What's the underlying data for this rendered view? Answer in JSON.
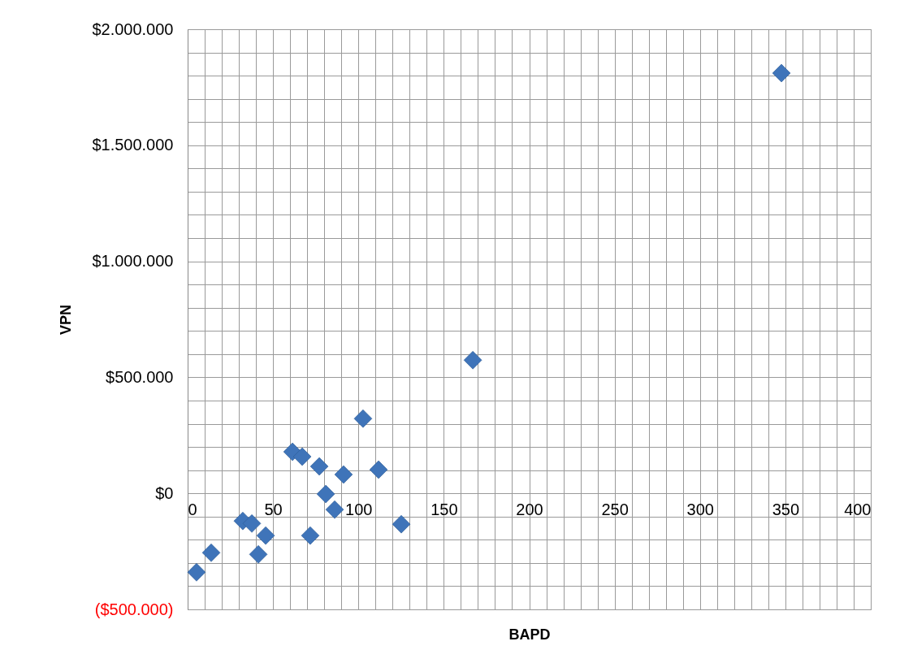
{
  "chart_data": {
    "type": "scatter",
    "xlabel": "BAPD",
    "ylabel": "VPN",
    "marker": "diamond",
    "grid": true,
    "series": [
      {
        "color": "#3f74b9",
        "x": [
          5.2,
          13.8,
          32.3,
          37.6,
          45.7,
          41.4,
          61.4,
          67.1,
          77.1,
          80.9,
          86.1,
          71.8,
          91.3,
          102.7,
          111.8,
          125.1,
          167,
          347.7
        ],
        "values": [
          -340000,
          -256000,
          -119000,
          -130000,
          -182000,
          -263000,
          179000,
          158000,
          116000,
          -3000,
          -70000,
          -182000,
          81000,
          322000,
          102000,
          -133000,
          574000,
          1811000
        ]
      }
    ],
    "xlim": [
      0,
      400
    ],
    "xticks": [
      0,
      {
        "value": 10,
        "label": null
      },
      {
        "value": 20,
        "label": null
      },
      {
        "value": 30,
        "label": null
      },
      {
        "value": 40,
        "label": null
      },
      50,
      {
        "value": 60,
        "label": null
      },
      {
        "value": 70,
        "label": null
      },
      {
        "value": 80,
        "label": null
      },
      {
        "value": 90,
        "label": null
      },
      100,
      {
        "value": 110,
        "label": null
      },
      {
        "value": 120,
        "label": null
      },
      {
        "value": 130,
        "label": null
      },
      {
        "value": 140,
        "label": null
      },
      150,
      {
        "value": 160,
        "label": null
      },
      {
        "value": 170,
        "label": null
      },
      {
        "value": 180,
        "label": null
      },
      {
        "value": 190,
        "label": null
      },
      200,
      {
        "value": 210,
        "label": null
      },
      {
        "value": 220,
        "label": null
      },
      {
        "value": 230,
        "label": null
      },
      {
        "value": 240,
        "label": null
      },
      250,
      {
        "value": 260,
        "label": null
      },
      {
        "value": 270,
        "label": null
      },
      {
        "value": 280,
        "label": null
      },
      {
        "value": 290,
        "label": null
      },
      300,
      {
        "value": 310,
        "label": null
      },
      {
        "value": 320,
        "label": null
      },
      {
        "value": 330,
        "label": null
      },
      {
        "value": 340,
        "label": null
      },
      350,
      {
        "value": 360,
        "label": null
      },
      {
        "value": 370,
        "label": null
      },
      {
        "value": 380,
        "label": null
      },
      {
        "value": 390,
        "label": null
      },
      400
    ],
    "ylim": [
      -500000,
      2000000
    ],
    "yticks": [
      {
        "value": -500000,
        "label": "($500.000)"
      },
      {
        "value": -400000,
        "label": null
      },
      {
        "value": -300000,
        "label": null
      },
      {
        "value": -200000,
        "label": null
      },
      {
        "value": -100000,
        "label": null
      },
      {
        "value": 0,
        "label": "$0"
      },
      {
        "value": 100000,
        "label": null
      },
      {
        "value": 200000,
        "label": null
      },
      {
        "value": 300000,
        "label": null
      },
      {
        "value": 400000,
        "label": null
      },
      {
        "value": 500000,
        "label": "$500.000"
      },
      {
        "value": 600000,
        "label": null
      },
      {
        "value": 700000,
        "label": null
      },
      {
        "value": 800000,
        "label": null
      },
      {
        "value": 900000,
        "label": null
      },
      {
        "value": 1000000,
        "label": "$1.000.000"
      },
      {
        "value": 1100000,
        "label": null
      },
      {
        "value": 1200000,
        "label": null
      },
      {
        "value": 1300000,
        "label": null
      },
      {
        "value": 1400000,
        "label": null
      },
      {
        "value": 1500000,
        "label": "$1.500.000"
      },
      {
        "value": 1600000,
        "label": null
      },
      {
        "value": 1700000,
        "label": null
      },
      {
        "value": 1800000,
        "label": null
      },
      {
        "value": 1900000,
        "label": null
      },
      {
        "value": 2000000,
        "label": "$2.000.000"
      }
    ]
  }
}
